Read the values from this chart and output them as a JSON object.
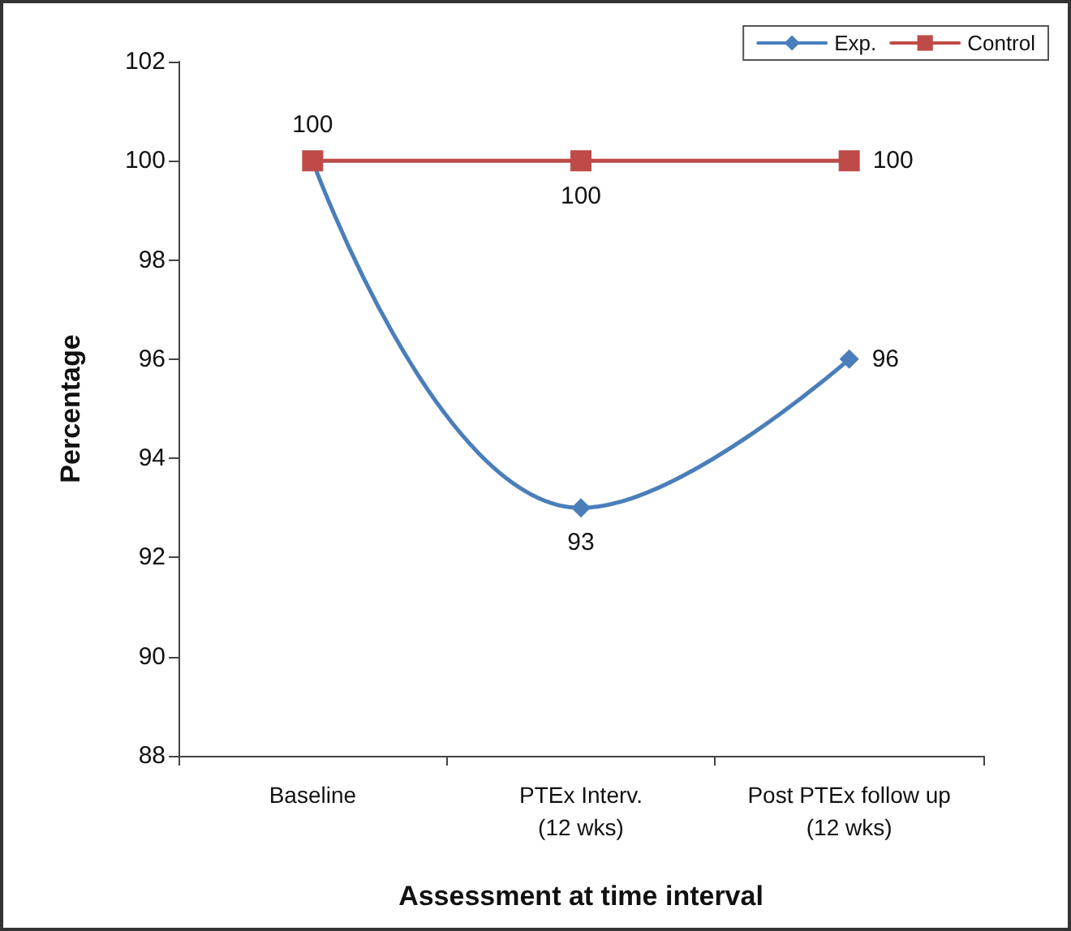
{
  "chart_data": {
    "type": "line",
    "xlabel": "Assessment at time interval",
    "ylabel": "Percentage",
    "categories": [
      "Baseline",
      "PTEx Interv.\n(12 wks)",
      "Post PTEx follow up\n(12 wks)"
    ],
    "series": [
      {
        "name": "Exp.",
        "color": "#4a7ebb",
        "marker": "diamond",
        "values": [
          100,
          93,
          96
        ],
        "value_labels": [
          null,
          "93",
          "96"
        ]
      },
      {
        "name": "Control",
        "color": "#be4b48",
        "marker": "square",
        "values": [
          100,
          100,
          100
        ],
        "value_labels": [
          "100",
          "100",
          "100"
        ]
      }
    ],
    "ylim": [
      88,
      102
    ],
    "yticks": [
      88,
      90,
      92,
      94,
      96,
      98,
      100,
      102
    ],
    "grid": false,
    "legend": "top right"
  }
}
